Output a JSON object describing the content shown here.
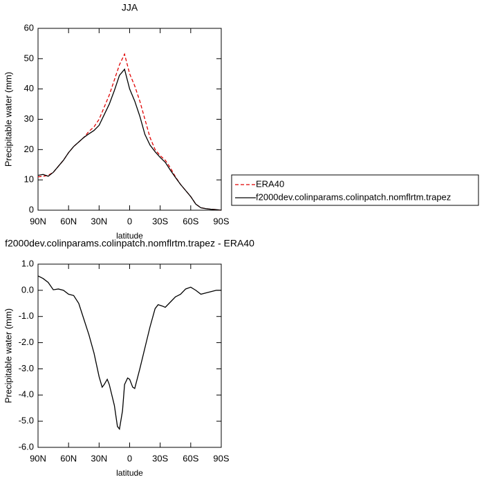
{
  "chart_data": [
    {
      "type": "line",
      "title": "JJA",
      "x_label": "latitude",
      "y_label": "Precipitable water (mm)",
      "x": [
        90,
        85,
        80,
        75,
        70,
        65,
        60,
        55,
        50,
        45,
        40,
        35,
        30,
        25,
        20,
        15,
        10,
        5,
        0,
        -5,
        -10,
        -15,
        -20,
        -25,
        -30,
        -35,
        -40,
        -45,
        -50,
        -55,
        -60,
        -65,
        -70,
        -75,
        -80,
        -85,
        -90
      ],
      "series": [
        {
          "name": "ERA40",
          "color": "#e00000",
          "dash": true,
          "values": [
            11,
            11.2,
            11.5,
            12.5,
            14.5,
            16.5,
            19,
            21,
            22.5,
            24,
            26,
            27.5,
            30,
            34,
            38,
            43,
            48,
            51.5,
            45,
            41,
            36,
            30,
            24,
            20,
            18,
            16.5,
            14,
            11,
            8.5,
            6.5,
            4.5,
            2,
            0.8,
            0.5,
            0.3,
            0.2,
            0
          ]
        },
        {
          "name": "f2000dev.colinparams.colinpatch.nomflrtm.trapez",
          "color": "#000000",
          "dash": false,
          "values": [
            11.5,
            11.8,
            11.2,
            12.5,
            14.5,
            16.5,
            19,
            21,
            22.5,
            24,
            25.2,
            26.3,
            28,
            31.5,
            35,
            39.5,
            44.5,
            46.5,
            40,
            36,
            31,
            25,
            21.5,
            19.3,
            17.4,
            15.8,
            13.2,
            10.8,
            8.5,
            6.5,
            4.5,
            2,
            0.8,
            0.5,
            0.3,
            0.2,
            0
          ]
        }
      ],
      "xlim": [
        90,
        -90
      ],
      "xticks": [
        {
          "value": 90,
          "label": "90N"
        },
        {
          "value": 60,
          "label": "60N"
        },
        {
          "value": 30,
          "label": "30N"
        },
        0,
        {
          "value": -30,
          "label": "30S"
        },
        {
          "value": -60,
          "label": "60S"
        },
        {
          "value": -90,
          "label": "90S"
        }
      ],
      "ylim": [
        0,
        60
      ],
      "yticks": [
        0,
        10,
        20,
        30,
        40,
        50,
        60
      ],
      "legend": "right"
    },
    {
      "type": "line",
      "title": "f2000dev.colinparams.colinpatch.nomflrtm.trapez - ERA40",
      "x_label": "latitude",
      "y_label": "Precipitable water (mm)",
      "x": [
        90,
        85,
        80,
        75,
        70,
        65,
        60,
        55,
        50,
        45,
        40,
        35,
        30,
        27,
        25,
        22,
        20,
        15,
        12,
        10,
        7,
        5,
        2,
        0,
        -3,
        -5,
        -10,
        -15,
        -20,
        -25,
        -28,
        -32,
        -35,
        -40,
        -45,
        -50,
        -55,
        -60,
        -65,
        -70,
        -75,
        -80,
        -85,
        -90
      ],
      "series": [
        {
          "color": "#000000",
          "values": [
            0.55,
            0.45,
            0.3,
            0.02,
            0.05,
            0,
            -0.15,
            -0.2,
            -0.5,
            -1.1,
            -1.7,
            -2.4,
            -3.3,
            -3.7,
            -3.6,
            -3.4,
            -3.6,
            -4.4,
            -5.2,
            -5.3,
            -4.6,
            -3.6,
            -3.35,
            -3.4,
            -3.7,
            -3.75,
            -3,
            -2.2,
            -1.4,
            -0.7,
            -0.55,
            -0.6,
            -0.65,
            -0.45,
            -0.25,
            -0.15,
            0.05,
            0.12,
            0,
            -0.15,
            -0.1,
            -0.05,
            0,
            0
          ]
        }
      ],
      "xlim": [
        90,
        -90
      ],
      "xticks": [
        {
          "value": 90,
          "label": "90N"
        },
        {
          "value": 60,
          "label": "60N"
        },
        {
          "value": 30,
          "label": "30N"
        },
        0,
        {
          "value": -30,
          "label": "30S"
        },
        {
          "value": -60,
          "label": "60S"
        },
        {
          "value": -90,
          "label": "90S"
        }
      ],
      "ylim": [
        -6,
        1
      ],
      "yticks": [
        {
          "value": -6,
          "label": "-6.0"
        },
        {
          "value": -5,
          "label": "-5.0"
        },
        {
          "value": -4,
          "label": "-4.0"
        },
        {
          "value": -3,
          "label": "-3.0"
        },
        {
          "value": -2,
          "label": "-2.0"
        },
        {
          "value": -1,
          "label": "-1.0"
        },
        {
          "value": 0,
          "label": "0.0"
        },
        {
          "value": 1,
          "label": "1.0"
        }
      ]
    }
  ]
}
